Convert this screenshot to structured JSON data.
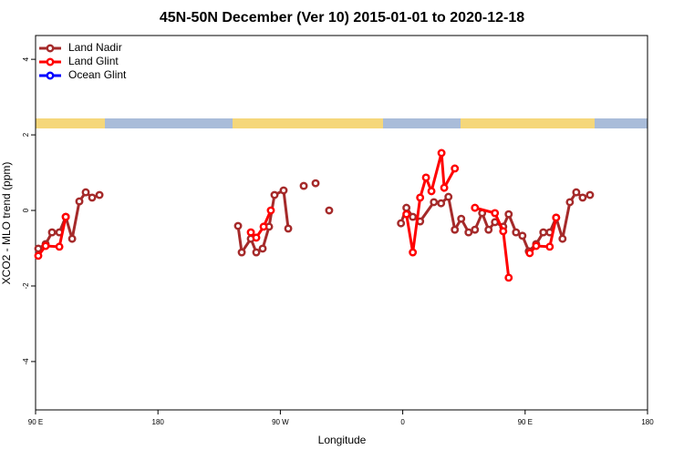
{
  "chart_data": {
    "type": "line",
    "title": "45N-50N December (Ver 10)   2015-01-01 to 2020-12-18",
    "xlabel": "Longitude",
    "ylabel": "XCO2 - MLO trend (ppm)",
    "xlim": [
      -270,
      180
    ],
    "ylim": [
      -5.28,
      4.63
    ],
    "xticks": [
      {
        "value": -270,
        "label": "90 E"
      },
      {
        "value": -180,
        "label": "180"
      },
      {
        "value": -90,
        "label": "90 W"
      },
      0,
      {
        "value": 90,
        "label": "90 E"
      },
      180
    ],
    "yticks": [
      -4,
      -2,
      0,
      2,
      4
    ],
    "legend": "top-left",
    "series": [
      {
        "name": "Land Nadir",
        "color": "#a52a2a",
        "x": [
          -268.0,
          -262.6,
          -257.9,
          -252.5,
          -247.8,
          -243.1,
          -237.8,
          -233.1,
          -228.4,
          -223.0,
          null,
          -121.1,
          -118.4,
          -111.7,
          -107.7,
          -103.0,
          -98.3,
          -94.3,
          -87.6,
          -84.2,
          null,
          -72.8,
          null,
          -64.1,
          null,
          -54.1,
          null,
          -1.3,
          2.7,
          7.4,
          12.8,
          22.9,
          28.2,
          33.6,
          38.3,
          43.0,
          48.4,
          53.1,
          58.4,
          63.1,
          67.8,
          73.9,
          77.9,
          83.3,
          88.0,
          92.7,
          98.1,
          103.4,
          108.1,
          112.8,
          117.5,
          122.9,
          127.6,
          132.3,
          137.7
        ],
        "values": [
          -1.01,
          -0.89,
          -0.58,
          -0.58,
          -0.17,
          -0.75,
          0.24,
          0.48,
          0.34,
          0.41,
          null,
          -0.41,
          -1.11,
          -0.75,
          -1.11,
          -1.01,
          -0.43,
          0.41,
          0.53,
          -0.48,
          null,
          0.65,
          null,
          0.72,
          null,
          0.0,
          null,
          -0.34,
          0.07,
          -0.17,
          -0.29,
          0.22,
          0.19,
          0.36,
          -0.51,
          -0.22,
          -0.58,
          -0.51,
          -0.07,
          -0.51,
          -0.31,
          -0.43,
          -0.1,
          -0.58,
          -0.67,
          -1.08,
          -0.89,
          -0.58,
          -0.58,
          -0.19,
          -0.75,
          0.22,
          0.48,
          0.34,
          0.41
        ]
      },
      {
        "name": "Land Glint",
        "color": "#ff0000",
        "x": [
          -268.0,
          -262.6,
          -252.5,
          -247.8,
          null,
          -111.7,
          -107.7,
          -102.3,
          -97.0,
          null,
          2.7,
          7.4,
          12.8,
          17.1,
          21.1,
          28.5,
          30.5,
          38.3,
          null,
          53.1,
          67.8,
          73.9,
          77.9,
          null,
          93.4,
          98.1,
          108.1,
          112.8
        ],
        "values": [
          -1.2,
          -0.94,
          -0.96,
          -0.17,
          null,
          -0.58,
          -0.72,
          -0.43,
          0.0,
          null,
          -0.1,
          -1.11,
          0.34,
          0.87,
          0.51,
          1.52,
          0.6,
          1.11,
          null,
          0.07,
          -0.07,
          -0.55,
          -1.78,
          null,
          -1.13,
          -0.94,
          -0.96,
          -0.19
        ]
      },
      {
        "name": "Ocean Glint",
        "color": "#0000ff",
        "x": [],
        "values": []
      }
    ]
  }
}
